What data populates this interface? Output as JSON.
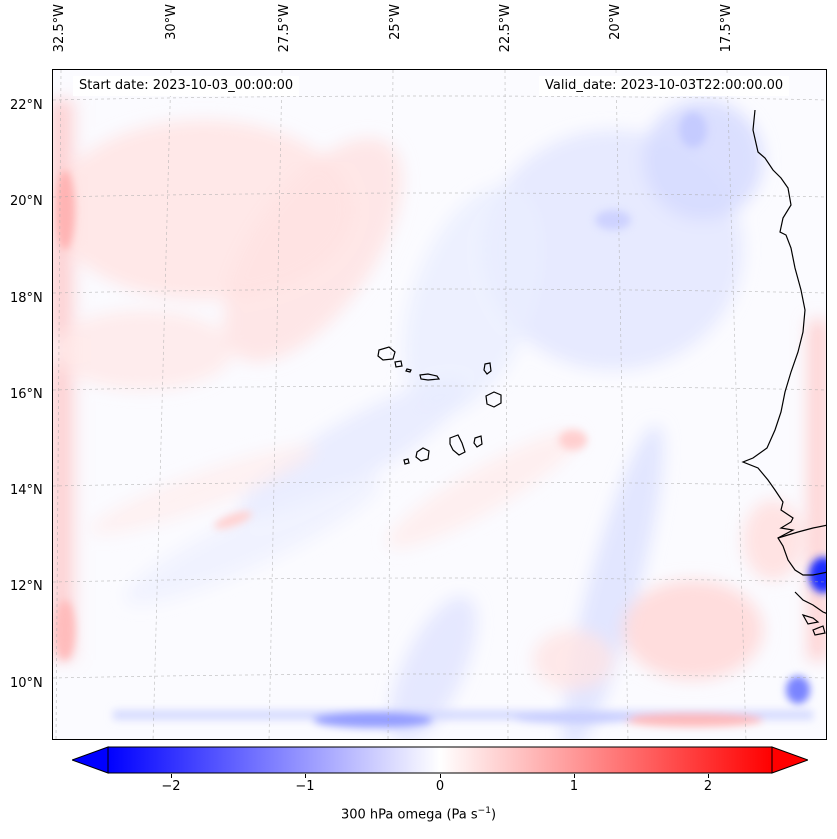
{
  "map": {
    "longitude_labels": [
      "32.5°W",
      "30°W",
      "27.5°W",
      "25°W",
      "22.5°W",
      "20°W",
      "17.5°W"
    ],
    "latitude_labels": [
      "22°N",
      "20°N",
      "18°N",
      "16°N",
      "14°N",
      "12°N",
      "10°N"
    ],
    "start_date": "Start date: 2023-10-03_00:00:00",
    "valid_date": "Valid_date: 2023-10-03T22:00:00.00",
    "field": "300 hPa omega",
    "colors": {
      "negative": "#0000ff",
      "zero": "#ffffff",
      "positive": "#ff0000",
      "coastline": "#000000"
    }
  },
  "colorbar": {
    "tick_labels": [
      "−2",
      "−1",
      "0",
      "1",
      "2"
    ],
    "tick_values": [
      -2,
      -1,
      0,
      1,
      2
    ],
    "range": [
      -2.5,
      2.5
    ],
    "extend": "both",
    "label_main": "300 hPa omega (Pa s",
    "label_exp": "−1",
    "label_close": ")"
  }
}
